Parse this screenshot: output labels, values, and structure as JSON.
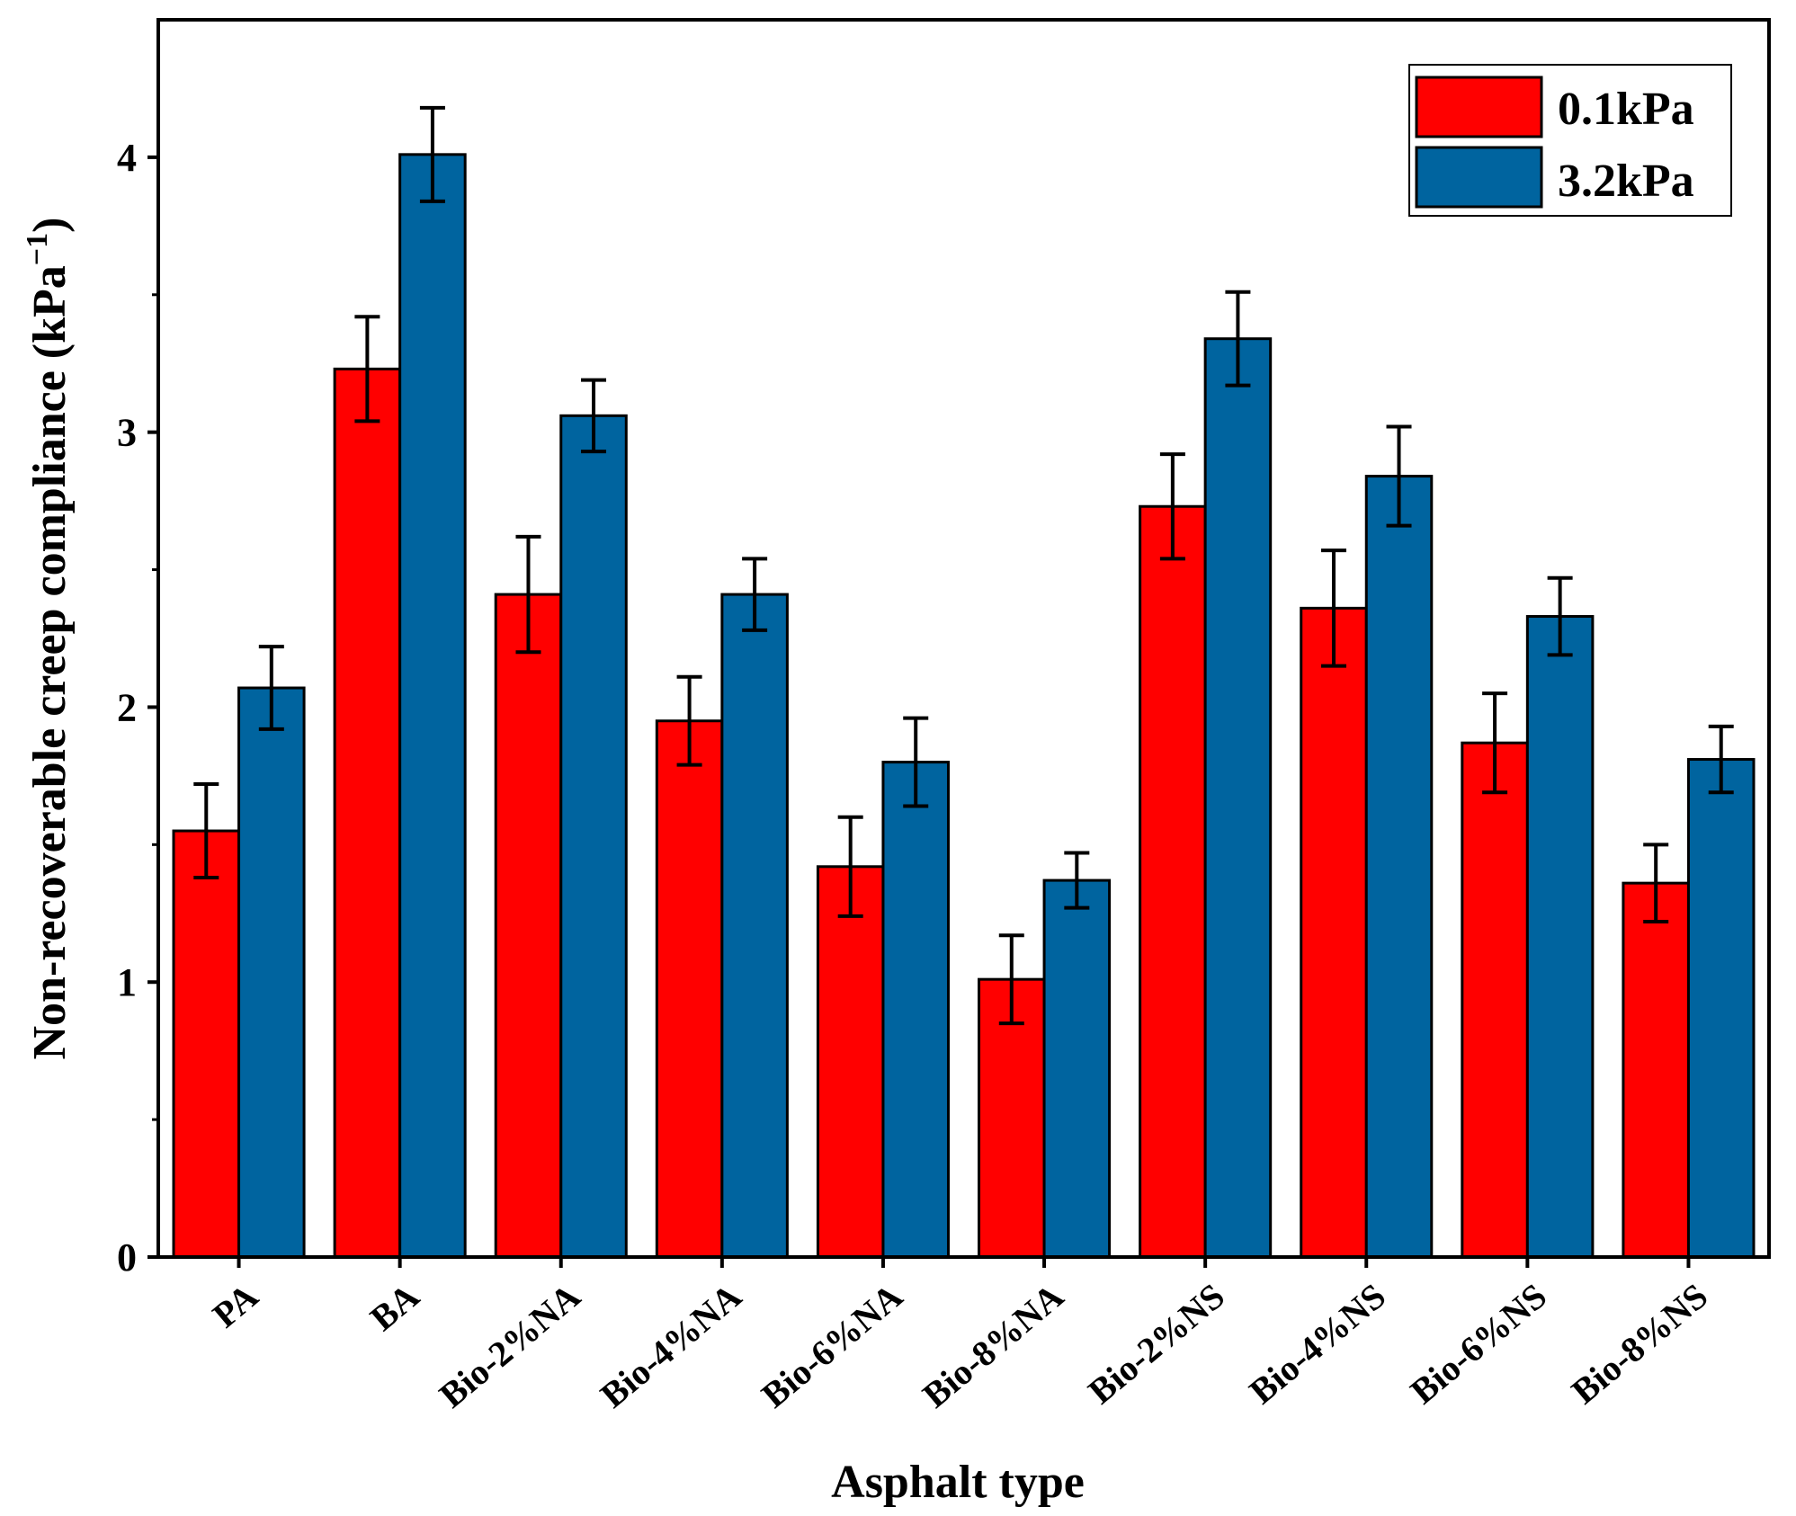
{
  "chart_data": {
    "type": "bar",
    "title": "",
    "xlabel": "Asphalt type",
    "ylabel": "Non-recoverable creep compliance (kPa",
    "ylabel_unit_exponent": "−1",
    "ylabel_close": ")",
    "ylim": [
      0,
      4.5
    ],
    "yticks": [
      "0",
      "1",
      "2",
      "3",
      "4"
    ],
    "categories": [
      "PA",
      "BA",
      "Bio-2%NA",
      "Bio-4%NA",
      "Bio-6%NA",
      "Bio-8%NA",
      "Bio-2%NS",
      "Bio-4%NS",
      "Bio-6%NS",
      "Bio-8%NS"
    ],
    "series": [
      {
        "name": "0.1kPa",
        "color": "#ff0000",
        "values": [
          1.55,
          3.23,
          2.41,
          1.95,
          1.42,
          1.01,
          2.73,
          2.36,
          1.87,
          1.36
        ],
        "errors": [
          0.17,
          0.19,
          0.21,
          0.16,
          0.18,
          0.16,
          0.19,
          0.21,
          0.18,
          0.14
        ]
      },
      {
        "name": "3.2kPa",
        "color": "#00649f",
        "values": [
          2.07,
          4.01,
          3.06,
          2.41,
          1.8,
          1.37,
          3.34,
          2.84,
          2.33,
          1.81
        ],
        "errors": [
          0.15,
          0.17,
          0.13,
          0.13,
          0.16,
          0.1,
          0.17,
          0.18,
          0.14,
          0.12
        ]
      }
    ],
    "legend_position": "top-right",
    "grid": false
  }
}
